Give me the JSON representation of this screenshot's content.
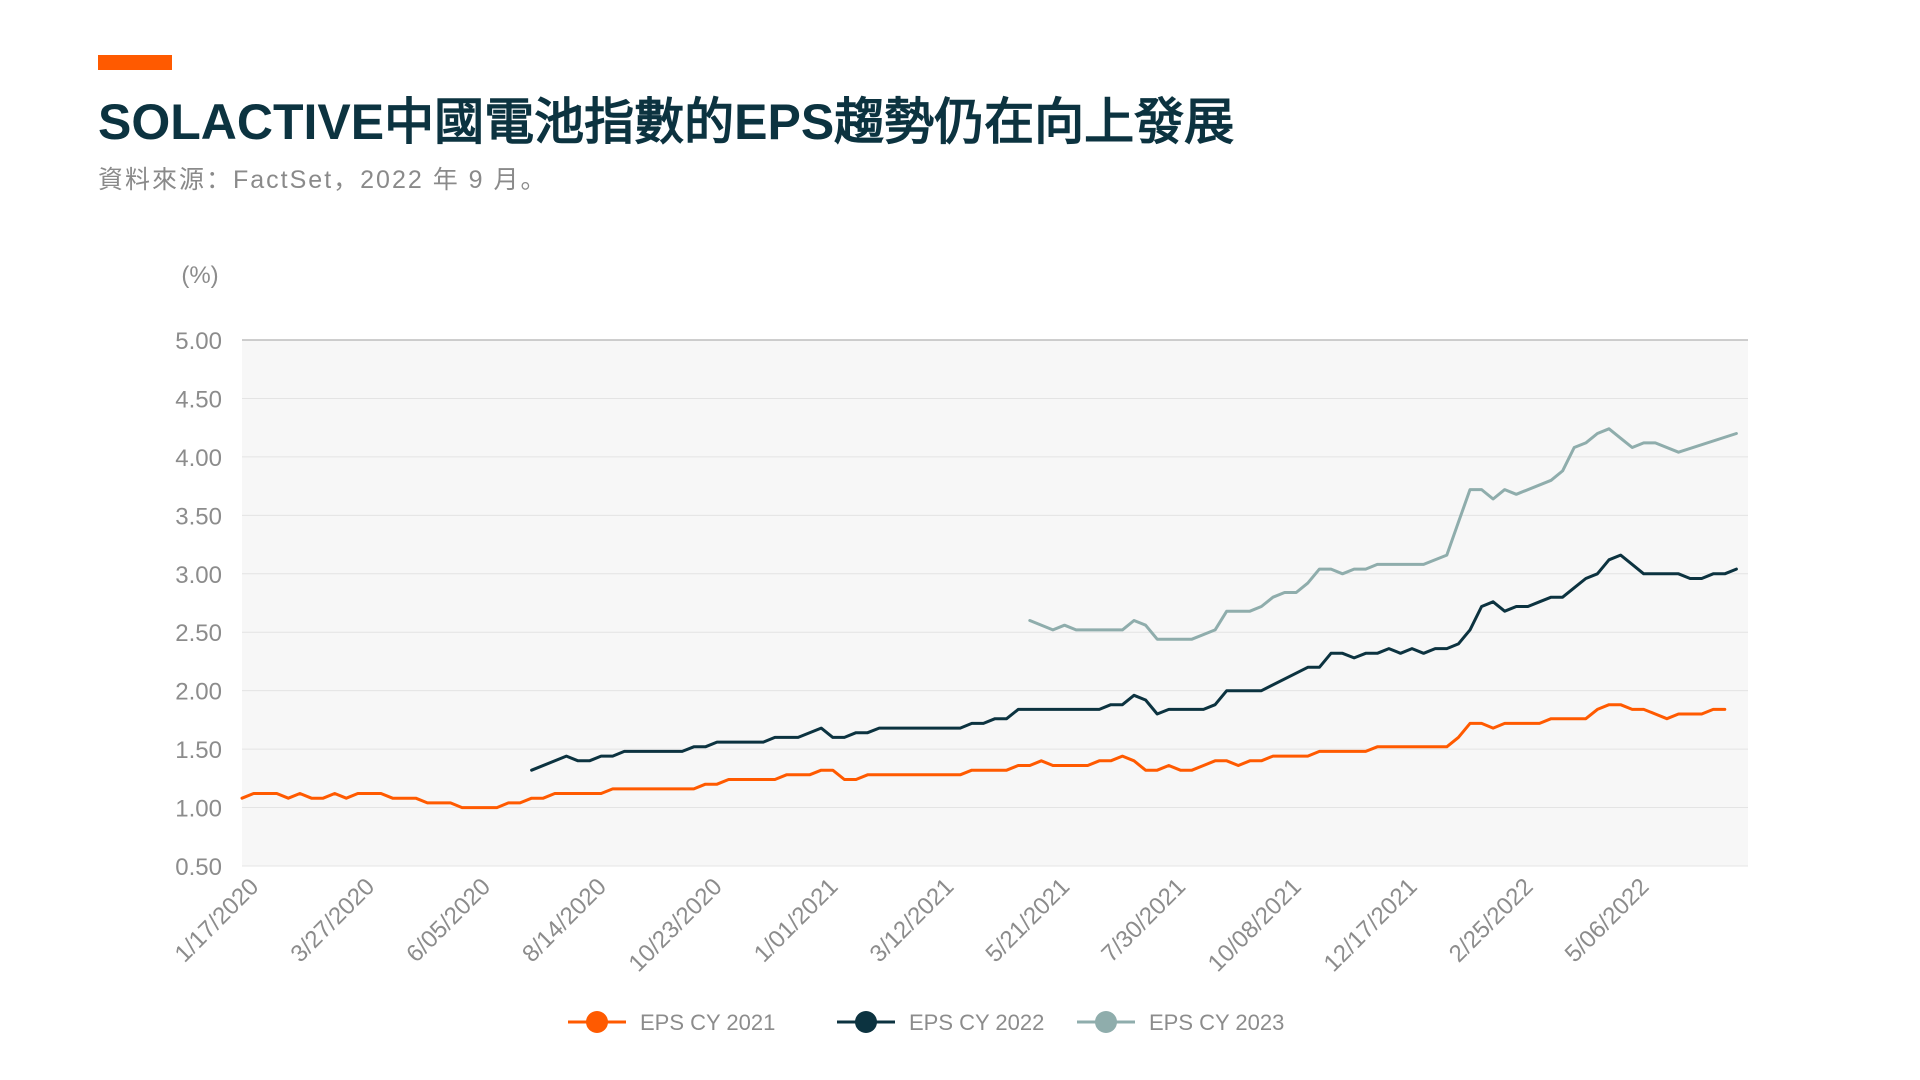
{
  "header": {
    "title": "SOLACTIVE中國電池指數的EPS趨勢仍在向上發展",
    "subtitle": "資料來源：FactSet，2022 年 9 月。"
  },
  "colors": {
    "accent": "#ff5a00",
    "title": "#0c3340",
    "plot_bg": "#f7f7f7"
  },
  "chart_data": {
    "type": "line",
    "ylabel": "(%)",
    "ylim": [
      0.5,
      5.0
    ],
    "yticks": [
      "5.00",
      "4.50",
      "4.00",
      "3.50",
      "3.00",
      "2.50",
      "2.00",
      "1.50",
      "1.00",
      "0.50"
    ],
    "yticks_values": [
      5.0,
      4.5,
      4.0,
      3.5,
      3.0,
      2.5,
      2.0,
      1.5,
      1.0,
      0.5
    ],
    "xlim": [
      0,
      130
    ],
    "xticks": [
      {
        "label": "1/17/2020",
        "x": 0
      },
      {
        "label": "3/27/2020",
        "x": 10
      },
      {
        "label": "6/05/2020",
        "x": 20
      },
      {
        "label": "8/14/2020",
        "x": 30
      },
      {
        "label": "10/23/2020",
        "x": 40
      },
      {
        "label": "1/01/2021",
        "x": 50
      },
      {
        "label": "3/12/2021",
        "x": 60
      },
      {
        "label": "5/21/2021",
        "x": 70
      },
      {
        "label": "7/30/2021",
        "x": 80
      },
      {
        "label": "10/08/2021",
        "x": 90
      },
      {
        "label": "12/17/2021",
        "x": 100
      },
      {
        "label": "2/25/2022",
        "x": 110
      },
      {
        "label": "5/06/2022",
        "x": 120
      }
    ],
    "grid": true,
    "legend_position": "bottom-center",
    "series": [
      {
        "name": "EPS CY 2021",
        "color": "#ff5a00",
        "points": [
          [
            0,
            1.08
          ],
          [
            1,
            1.12
          ],
          [
            3,
            1.12
          ],
          [
            4,
            1.08
          ],
          [
            5,
            1.12
          ],
          [
            6,
            1.08
          ],
          [
            7,
            1.08
          ],
          [
            8,
            1.12
          ],
          [
            9,
            1.08
          ],
          [
            10,
            1.12
          ],
          [
            12,
            1.12
          ],
          [
            13,
            1.08
          ],
          [
            15,
            1.08
          ],
          [
            16,
            1.04
          ],
          [
            18,
            1.04
          ],
          [
            19,
            1.0
          ],
          [
            22,
            1.0
          ],
          [
            23,
            1.04
          ],
          [
            24,
            1.04
          ],
          [
            25,
            1.08
          ],
          [
            26,
            1.08
          ],
          [
            27,
            1.12
          ],
          [
            31,
            1.12
          ],
          [
            32,
            1.16
          ],
          [
            39,
            1.16
          ],
          [
            40,
            1.2
          ],
          [
            41,
            1.2
          ],
          [
            42,
            1.24
          ],
          [
            46,
            1.24
          ],
          [
            47,
            1.28
          ],
          [
            49,
            1.28
          ],
          [
            50,
            1.32
          ],
          [
            51,
            1.32
          ],
          [
            52,
            1.24
          ],
          [
            53,
            1.24
          ],
          [
            54,
            1.28
          ],
          [
            62,
            1.28
          ],
          [
            63,
            1.32
          ],
          [
            66,
            1.32
          ],
          [
            67,
            1.36
          ],
          [
            68,
            1.36
          ],
          [
            69,
            1.4
          ],
          [
            70,
            1.36
          ],
          [
            73,
            1.36
          ],
          [
            74,
            1.4
          ],
          [
            75,
            1.4
          ],
          [
            76,
            1.44
          ],
          [
            77,
            1.4
          ],
          [
            78,
            1.32
          ],
          [
            79,
            1.32
          ],
          [
            80,
            1.36
          ],
          [
            81,
            1.32
          ],
          [
            82,
            1.32
          ],
          [
            83,
            1.36
          ],
          [
            84,
            1.4
          ],
          [
            85,
            1.4
          ],
          [
            86,
            1.36
          ],
          [
            87,
            1.4
          ],
          [
            88,
            1.4
          ],
          [
            89,
            1.44
          ],
          [
            92,
            1.44
          ],
          [
            93,
            1.48
          ],
          [
            97,
            1.48
          ],
          [
            98,
            1.52
          ],
          [
            104,
            1.52
          ],
          [
            105,
            1.6
          ],
          [
            106,
            1.72
          ],
          [
            107,
            1.72
          ],
          [
            108,
            1.68
          ],
          [
            109,
            1.72
          ],
          [
            112,
            1.72
          ],
          [
            113,
            1.76
          ],
          [
            116,
            1.76
          ],
          [
            117,
            1.84
          ],
          [
            118,
            1.88
          ],
          [
            119,
            1.88
          ],
          [
            120,
            1.84
          ],
          [
            121,
            1.84
          ],
          [
            122,
            1.8
          ],
          [
            123,
            1.76
          ],
          [
            124,
            1.8
          ],
          [
            126,
            1.8
          ],
          [
            127,
            1.84
          ],
          [
            128,
            1.84
          ]
        ]
      },
      {
        "name": "EPS CY 2022",
        "color": "#0c3340",
        "points": [
          [
            25,
            1.32
          ],
          [
            28,
            1.44
          ],
          [
            29,
            1.4
          ],
          [
            30,
            1.4
          ],
          [
            31,
            1.44
          ],
          [
            32,
            1.44
          ],
          [
            33,
            1.48
          ],
          [
            38,
            1.48
          ],
          [
            39,
            1.52
          ],
          [
            40,
            1.52
          ],
          [
            41,
            1.56
          ],
          [
            45,
            1.56
          ],
          [
            46,
            1.6
          ],
          [
            48,
            1.6
          ],
          [
            50,
            1.68
          ],
          [
            51,
            1.6
          ],
          [
            52,
            1.6
          ],
          [
            53,
            1.64
          ],
          [
            54,
            1.64
          ],
          [
            55,
            1.68
          ],
          [
            62,
            1.68
          ],
          [
            63,
            1.72
          ],
          [
            64,
            1.72
          ],
          [
            65,
            1.76
          ],
          [
            66,
            1.76
          ],
          [
            67,
            1.84
          ],
          [
            74,
            1.84
          ],
          [
            75,
            1.88
          ],
          [
            76,
            1.88
          ],
          [
            77,
            1.96
          ],
          [
            78,
            1.92
          ],
          [
            79,
            1.8
          ],
          [
            80,
            1.84
          ],
          [
            83,
            1.84
          ],
          [
            84,
            1.88
          ],
          [
            85,
            2.0
          ],
          [
            88,
            2.0
          ],
          [
            92,
            2.2
          ],
          [
            93,
            2.2
          ],
          [
            94,
            2.32
          ],
          [
            95,
            2.32
          ],
          [
            96,
            2.28
          ],
          [
            97,
            2.32
          ],
          [
            98,
            2.32
          ],
          [
            99,
            2.36
          ],
          [
            100,
            2.32
          ],
          [
            101,
            2.36
          ],
          [
            102,
            2.32
          ],
          [
            103,
            2.36
          ],
          [
            104,
            2.36
          ],
          [
            105,
            2.4
          ],
          [
            106,
            2.52
          ],
          [
            107,
            2.72
          ],
          [
            108,
            2.76
          ],
          [
            109,
            2.68
          ],
          [
            110,
            2.72
          ],
          [
            111,
            2.72
          ],
          [
            112,
            2.76
          ],
          [
            113,
            2.8
          ],
          [
            114,
            2.8
          ],
          [
            115,
            2.88
          ],
          [
            116,
            2.96
          ],
          [
            117,
            3.0
          ],
          [
            118,
            3.12
          ],
          [
            119,
            3.16
          ],
          [
            120,
            3.08
          ],
          [
            121,
            3.0
          ],
          [
            124,
            3.0
          ],
          [
            125,
            2.96
          ],
          [
            126,
            2.96
          ],
          [
            127,
            3.0
          ],
          [
            128,
            3.0
          ],
          [
            129,
            3.04
          ]
        ]
      },
      {
        "name": "EPS CY 2023",
        "color": "#8fadac",
        "points": [
          [
            68,
            2.6
          ],
          [
            70,
            2.52
          ],
          [
            71,
            2.56
          ],
          [
            72,
            2.52
          ],
          [
            76,
            2.52
          ],
          [
            77,
            2.6
          ],
          [
            78,
            2.56
          ],
          [
            79,
            2.44
          ],
          [
            82,
            2.44
          ],
          [
            84,
            2.52
          ],
          [
            85,
            2.68
          ],
          [
            87,
            2.68
          ],
          [
            88,
            2.72
          ],
          [
            89,
            2.8
          ],
          [
            90,
            2.84
          ],
          [
            91,
            2.84
          ],
          [
            92,
            2.92
          ],
          [
            93,
            3.04
          ],
          [
            94,
            3.04
          ],
          [
            95,
            3.0
          ],
          [
            96,
            3.04
          ],
          [
            97,
            3.04
          ],
          [
            98,
            3.08
          ],
          [
            102,
            3.08
          ],
          [
            104,
            3.16
          ],
          [
            105,
            3.44
          ],
          [
            106,
            3.72
          ],
          [
            107,
            3.72
          ],
          [
            108,
            3.64
          ],
          [
            109,
            3.72
          ],
          [
            110,
            3.68
          ],
          [
            113,
            3.8
          ],
          [
            114,
            3.88
          ],
          [
            115,
            4.08
          ],
          [
            116,
            4.12
          ],
          [
            117,
            4.2
          ],
          [
            118,
            4.24
          ],
          [
            119,
            4.16
          ],
          [
            120,
            4.08
          ],
          [
            121,
            4.12
          ],
          [
            122,
            4.12
          ],
          [
            124,
            4.04
          ],
          [
            129,
            4.2
          ]
        ]
      }
    ]
  }
}
